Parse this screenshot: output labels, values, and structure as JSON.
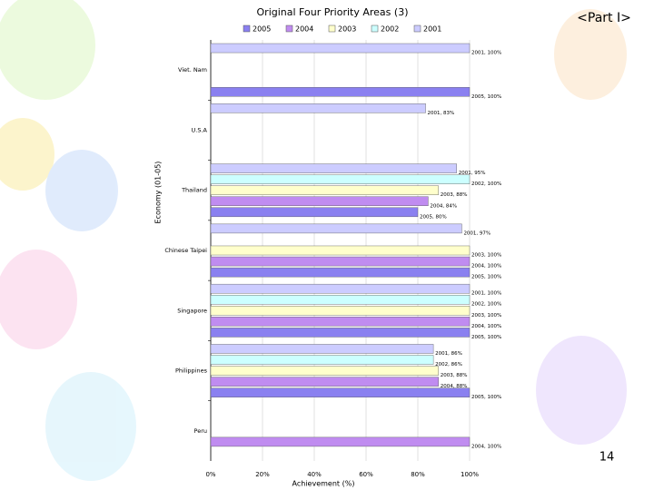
{
  "chart_data": {
    "type": "hbar",
    "title": "Original Four Priority Areas (3)",
    "part": "<Part I>",
    "page_number": "14",
    "y_label": "Economy (01-05)",
    "x_label": "Achievement (%)",
    "categories": [
      "Viet. Nam",
      "U.S.A",
      "Thailand",
      "Chinese Taipei",
      "Singapore",
      "Philippines",
      "Peru"
    ],
    "series": [
      {
        "name": "2005",
        "color": "#8a80f0",
        "values": [
          100,
          null,
          80,
          100,
          100,
          100,
          null
        ],
        "value_labels": [
          "2005, 100%",
          null,
          "2005, 80%",
          "2005, 100%",
          "2005, 100%",
          "2005, 100%",
          null
        ]
      },
      {
        "name": "2004",
        "color": "#c08cf0",
        "values": [
          null,
          null,
          84,
          100,
          100,
          88,
          100
        ],
        "value_labels": [
          null,
          null,
          "2004, 84%",
          "2004, 100%",
          "2004, 100%",
          "2004, 88%",
          "2004, 100%"
        ]
      },
      {
        "name": "2003",
        "color": "#ffffcc",
        "values": [
          null,
          null,
          88,
          100,
          100,
          88,
          null
        ],
        "value_labels": [
          null,
          null,
          "2003, 88%",
          "2003, 100%",
          "2003, 100%",
          "2003, 88%",
          null
        ]
      },
      {
        "name": "2002",
        "color": "#ccffff",
        "values": [
          null,
          null,
          100,
          null,
          100,
          86,
          null
        ],
        "value_labels": [
          null,
          null,
          "2002, 100%",
          null,
          "2002, 100%",
          "2002, 86%",
          null
        ]
      },
      {
        "name": "2001",
        "color": "#ccccff",
        "values": [
          100,
          83,
          95,
          97,
          100,
          86,
          null
        ],
        "value_labels": [
          "2001, 100%",
          "2001, 83%",
          "2001, 95%",
          "2001, 97%",
          "2001, 100%",
          "2001, 86%",
          null
        ]
      }
    ],
    "xlim": [
      0,
      100
    ],
    "xticks": [
      {
        "value": 0,
        "label": "0%"
      },
      {
        "value": 20,
        "label": "20%"
      },
      {
        "value": 40,
        "label": "40%"
      },
      {
        "value": 60,
        "label": "60%"
      },
      {
        "value": 80,
        "label": "80%"
      },
      {
        "value": 100,
        "label": "100%"
      }
    ],
    "grid": true
  }
}
